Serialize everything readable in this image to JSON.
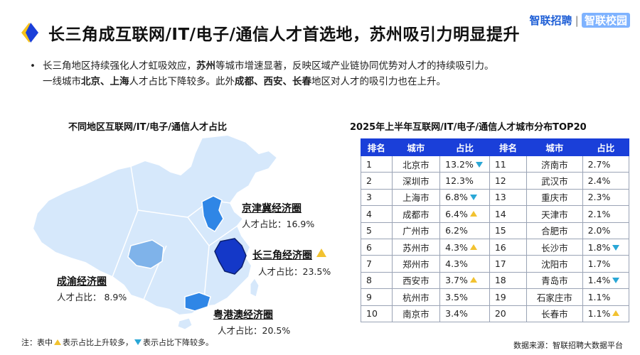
{
  "header": {
    "title": "长三角成互联网/IT/电子/通信人才首选地，苏州吸引力明显提升",
    "brand_primary": "智联招聘",
    "brand_separator": "|",
    "brand_secondary": "智联校园"
  },
  "summary": {
    "line1_a": "长三角地区持续强化人才虹吸效应，",
    "line1_b": "苏州",
    "line1_c": "等城市增速显著，反映区域产业链协同优势对人才的持续吸引力。",
    "line2_a": "一线城市",
    "line2_b": "北京、上海",
    "line2_c": "人才占比下降较多。此外",
    "line2_d": "成都、西安、长春",
    "line2_e": "地区对人才的吸引力也在上升。"
  },
  "map": {
    "title": "不同地区互联网/IT/电子/通信人才占比",
    "regions": [
      {
        "name": "京津冀经济圈",
        "pct": "人才占比：16.9%",
        "trend": "none"
      },
      {
        "name": "长三角经济圈",
        "pct": "人才占比：23.5%",
        "trend": "up"
      },
      {
        "name": "成渝经济圈",
        "pct": "人才占比： 8.9%",
        "trend": "none"
      },
      {
        "name": "粤港澳经济圈",
        "pct": "人才占比：20.5%",
        "trend": "none"
      }
    ],
    "colors": {
      "land": "#d6e8fb",
      "border": "#ffffff",
      "jjj": "#2f86e6",
      "csj": "#1438c8",
      "cy": "#7fb3ea",
      "gba": "#2f86e6"
    }
  },
  "table": {
    "title": "2025年上半年互联网/IT/电子/通信人才城市分布TOP20",
    "headers": [
      "排名",
      "城市",
      "占比",
      "排名",
      "城市",
      "占比"
    ],
    "rows": [
      {
        "r1": "1",
        "c1": "北京市",
        "p1": "13.2%",
        "t1": "down",
        "r2": "11",
        "c2": "济南市",
        "p2": "2.7%",
        "t2": "none"
      },
      {
        "r1": "2",
        "c1": "深圳市",
        "p1": "12.3%",
        "t1": "none",
        "r2": "12",
        "c2": "武汉市",
        "p2": "2.4%",
        "t2": "none"
      },
      {
        "r1": "3",
        "c1": "上海市",
        "p1": "6.8%",
        "t1": "down",
        "r2": "13",
        "c2": "重庆市",
        "p2": "2.3%",
        "t2": "none"
      },
      {
        "r1": "4",
        "c1": "成都市",
        "p1": "6.4%",
        "t1": "up",
        "r2": "14",
        "c2": "天津市",
        "p2": "2.1%",
        "t2": "none"
      },
      {
        "r1": "5",
        "c1": "广州市",
        "p1": "6.2%",
        "t1": "none",
        "r2": "15",
        "c2": "合肥市",
        "p2": "2.0%",
        "t2": "none"
      },
      {
        "r1": "6",
        "c1": "苏州市",
        "p1": "4.3%",
        "t1": "up",
        "r2": "16",
        "c2": "长沙市",
        "p2": "1.8%",
        "t2": "down"
      },
      {
        "r1": "7",
        "c1": "郑州市",
        "p1": "4.3%",
        "t1": "none",
        "r2": "17",
        "c2": "沈阳市",
        "p2": "1.7%",
        "t2": "none"
      },
      {
        "r1": "8",
        "c1": "西安市",
        "p1": "3.7%",
        "t1": "up",
        "r2": "18",
        "c2": "青岛市",
        "p2": "1.4%",
        "t2": "down"
      },
      {
        "r1": "9",
        "c1": "杭州市",
        "p1": "3.5%",
        "t1": "none",
        "r2": "19",
        "c2": "石家庄市",
        "p2": "1.1%",
        "t2": "none"
      },
      {
        "r1": "10",
        "c1": "南京市",
        "p1": "3.4%",
        "t1": "none",
        "r2": "20",
        "c2": "长春市",
        "p2": "1.1%",
        "t2": "up"
      }
    ]
  },
  "footnote": {
    "prefix": "注：表中",
    "up_text": "表示占比上升较多，",
    "down_text": "表示占比下降较多。"
  },
  "source": "数据来源：智联招聘大数据平台"
}
